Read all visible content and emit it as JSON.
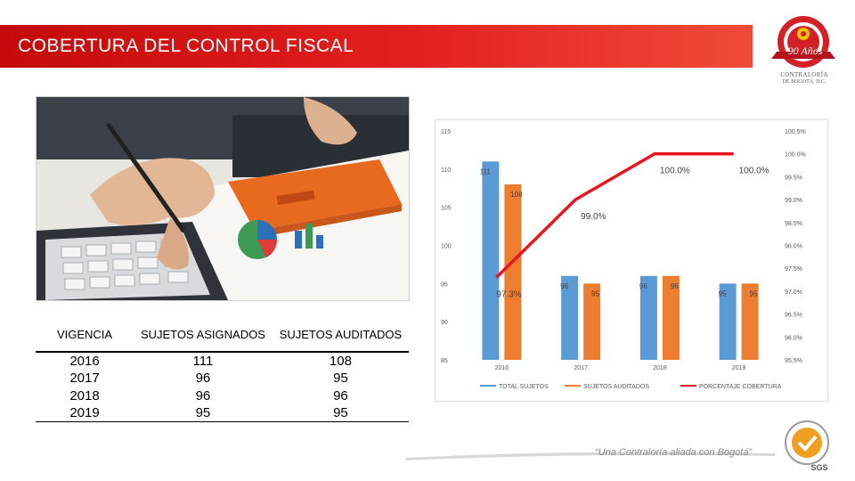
{
  "header": {
    "title": "COBERTURA DEL CONTROL FISCAL",
    "logo_line1": "CONTRALORÍA",
    "logo_line2": "DE BOGOTÁ, D.C.",
    "logo_badge": "90 Años"
  },
  "table": {
    "headers": [
      "VIGENCIA",
      "SUJETOS ASIGNADOS",
      "SUJETOS AUDITADOS"
    ],
    "rows": [
      [
        "2016",
        "111",
        "108"
      ],
      [
        "2017",
        "96",
        "95"
      ],
      [
        "2018",
        "96",
        "96"
      ],
      [
        "2019",
        "95",
        "95"
      ]
    ]
  },
  "chart_data": {
    "type": "bar",
    "categories": [
      "2016",
      "2017",
      "2018",
      "2019"
    ],
    "series": [
      {
        "name": "TOTAL SUJETOS",
        "type": "bar",
        "axis": "left",
        "color": "#5b9bd5",
        "values": [
          111,
          96,
          96,
          95
        ],
        "labels": [
          "111",
          "96",
          "96",
          "95"
        ]
      },
      {
        "name": "SUJETOS AUDITADOS",
        "type": "bar",
        "axis": "left",
        "color": "#ed7d31",
        "values": [
          108,
          95,
          96,
          95
        ],
        "labels": [
          "108",
          "95",
          "96",
          "95"
        ]
      },
      {
        "name": "PORCENTAJE COBERTURA",
        "type": "line",
        "axis": "right",
        "color": "#e8141e",
        "values": [
          97.3,
          99.0,
          100.0,
          100.0
        ],
        "labels": [
          "97.3%",
          "99.0%",
          "100.0%",
          "100.0%"
        ]
      }
    ],
    "y_left": {
      "min": 85,
      "max": 115,
      "ticks": [
        "115",
        "110",
        "105",
        "100",
        "95",
        "90",
        "85"
      ],
      "tick_values": [
        115,
        110,
        105,
        100,
        95,
        90,
        85
      ]
    },
    "y_right": {
      "min": 95.5,
      "max": 100.5,
      "ticks": [
        "100.5%",
        "100.0%",
        "99.5%",
        "99.0%",
        "98.5%",
        "98.0%",
        "97.5%",
        "97.0%",
        "96.5%",
        "96.0%",
        "95.5%"
      ],
      "tick_values": [
        100.5,
        100.0,
        99.5,
        99.0,
        98.5,
        98.0,
        97.5,
        97.0,
        96.5,
        96.0,
        95.5
      ]
    },
    "legend_position": "bottom",
    "grid": false
  },
  "footer": {
    "tagline": "“Una Contraloría aliada con Bogotá”",
    "sgs_label": "SGS"
  }
}
